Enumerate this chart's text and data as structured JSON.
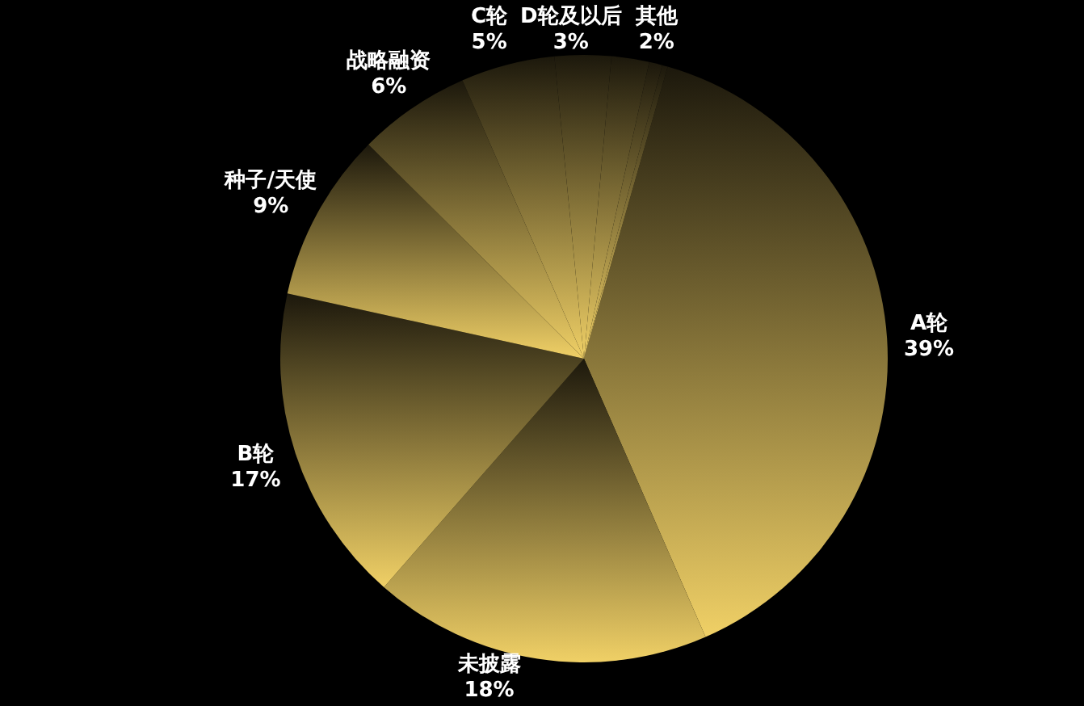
{
  "chart_data": {
    "type": "pie",
    "categories": [
      "A轮",
      "未披露",
      "B轮",
      "种子/天使",
      "战略融资",
      "C轮",
      "D轮及以后",
      "其他",
      null,
      null
    ],
    "values": [
      39,
      18,
      17,
      9,
      6,
      5,
      3,
      2,
      0.7,
      0.3
    ],
    "value_labels": [
      "39%",
      "18%",
      "17%",
      "9%",
      "6%",
      "5%",
      "3%",
      "2%",
      null,
      null
    ],
    "colors": [
      "#f0d066",
      "#f0d066",
      "#f0d066",
      "#f0d066",
      "#f0d066",
      "#f0d066",
      "#f0d066",
      "#f0d066",
      "#f0d066",
      "#f0d066"
    ]
  }
}
